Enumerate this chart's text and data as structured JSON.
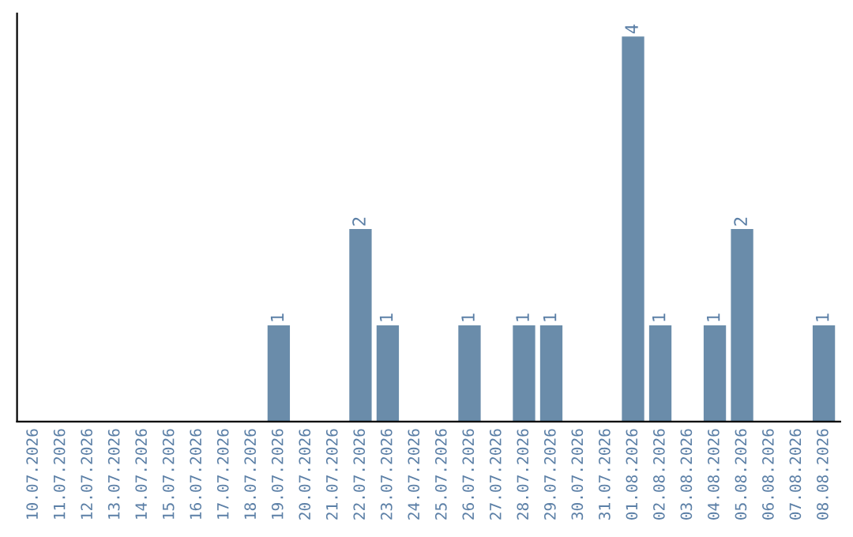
{
  "chart_data": {
    "type": "bar",
    "categories": [
      "10.07.2026",
      "11.07.2026",
      "12.07.2026",
      "13.07.2026",
      "14.07.2026",
      "15.07.2026",
      "16.07.2026",
      "17.07.2026",
      "18.07.2026",
      "19.07.2026",
      "20.07.2026",
      "21.07.2026",
      "22.07.2026",
      "23.07.2026",
      "24.07.2026",
      "25.07.2026",
      "26.07.2026",
      "27.07.2026",
      "28.07.2026",
      "29.07.2026",
      "30.07.2026",
      "31.07.2026",
      "01.08.2026",
      "02.08.2026",
      "03.08.2026",
      "04.08.2026",
      "05.08.2026",
      "06.08.2026",
      "07.08.2026",
      "08.08.2026"
    ],
    "values": [
      0,
      0,
      0,
      0,
      0,
      0,
      0,
      0,
      0,
      1,
      0,
      0,
      2,
      1,
      0,
      0,
      1,
      0,
      1,
      1,
      0,
      0,
      4,
      1,
      0,
      1,
      2,
      0,
      0,
      1
    ],
    "value_labels": [
      null,
      null,
      null,
      null,
      null,
      null,
      null,
      null,
      null,
      "1",
      null,
      null,
      "2",
      "1",
      null,
      null,
      "1",
      null,
      "1",
      "1",
      null,
      null,
      "4",
      "1",
      null,
      "1",
      "2",
      null,
      null,
      "1"
    ],
    "color": "#6a8caa",
    "grid": false,
    "legend": false
  }
}
